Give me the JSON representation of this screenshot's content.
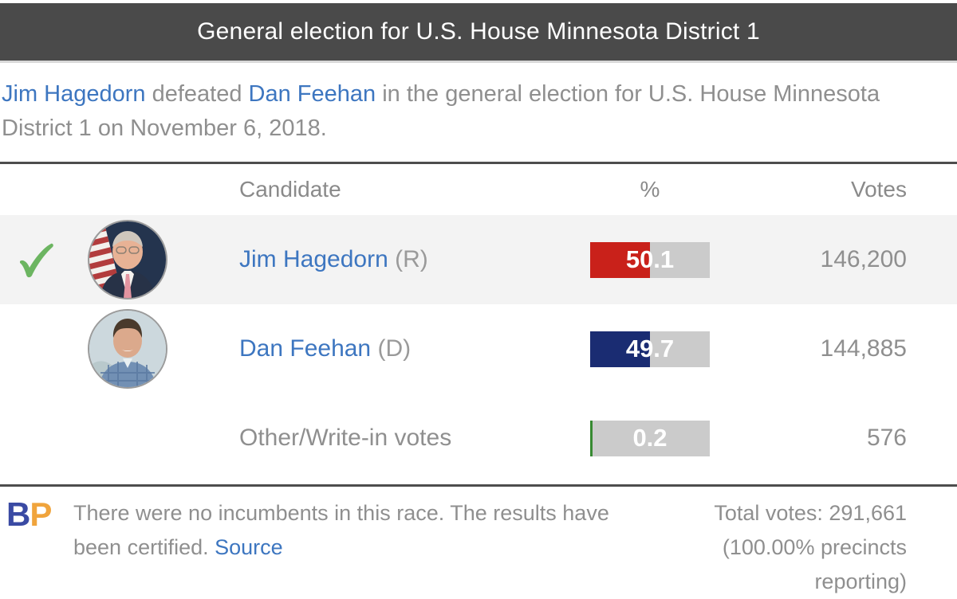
{
  "header": {
    "title": "General election for U.S. House Minnesota District 1"
  },
  "summary": {
    "winner_link": "Jim Hagedorn",
    "mid": " defeated ",
    "loser_link": "Dan Feehan",
    "rest": " in the general election for U.S. House Minnesota District 1 on November 6, 2018."
  },
  "table": {
    "columns": {
      "candidate": "Candidate",
      "percent": "%",
      "votes": "Votes"
    },
    "rows": [
      {
        "name": "Jim Hagedorn",
        "party": " (R)",
        "percent_label": "50.1",
        "percent_value": 50.1,
        "votes": "146,200",
        "bar_color": "#c9211a",
        "winner": true
      },
      {
        "name": "Dan Feehan",
        "party": " (D)",
        "percent_label": "49.7",
        "percent_value": 49.7,
        "votes": "144,885",
        "bar_color": "#1a2c72",
        "winner": false
      },
      {
        "name": "Other/Write-in votes",
        "party": "",
        "percent_label": "0.2",
        "percent_value": 0.2,
        "votes": "576",
        "bar_color": "#378a32",
        "winner": false
      }
    ]
  },
  "footer": {
    "logo_b": "B",
    "logo_p": "P",
    "note": "There were no incumbents in this race. The results have been certified. ",
    "source_label": "Source",
    "total_votes_line": "Total votes: 291,661",
    "precincts_line": "(100.00% precincts reporting)"
  },
  "colors": {
    "header_bg": "#4a4a4a",
    "link_blue": "#3d76c0",
    "winner_row_bg": "#f3f3f3",
    "bar_track": "#cbcbcb",
    "republican_red": "#c9211a",
    "democrat_navy": "#1a2c72",
    "other_green": "#378a32",
    "checkmark_green": "#6cb561",
    "bp_blue": "#3a4aa3",
    "bp_orange": "#f0a43c"
  },
  "icons": {
    "winner_checkmark": "check-icon"
  },
  "chart_data": {
    "type": "bar",
    "title": "General election for U.S. House Minnesota District 1",
    "categories": [
      "Jim Hagedorn (R)",
      "Dan Feehan (D)",
      "Other/Write-in votes"
    ],
    "values": [
      50.1,
      49.7,
      0.2
    ],
    "series": [
      {
        "name": "Percent of vote",
        "values": [
          50.1,
          49.7,
          0.2
        ]
      },
      {
        "name": "Votes",
        "values": [
          146200,
          144885,
          576
        ]
      }
    ],
    "xlabel": "%",
    "ylabel": "Candidate",
    "xlim": [
      0,
      100
    ],
    "grid": false,
    "legend_position": "none",
    "annotations": {
      "winner": "Jim Hagedorn",
      "election_date": "November 6, 2018",
      "total_votes": 291661,
      "precincts_reporting_percent": 100.0,
      "certified": true,
      "incumbents": "none"
    }
  }
}
